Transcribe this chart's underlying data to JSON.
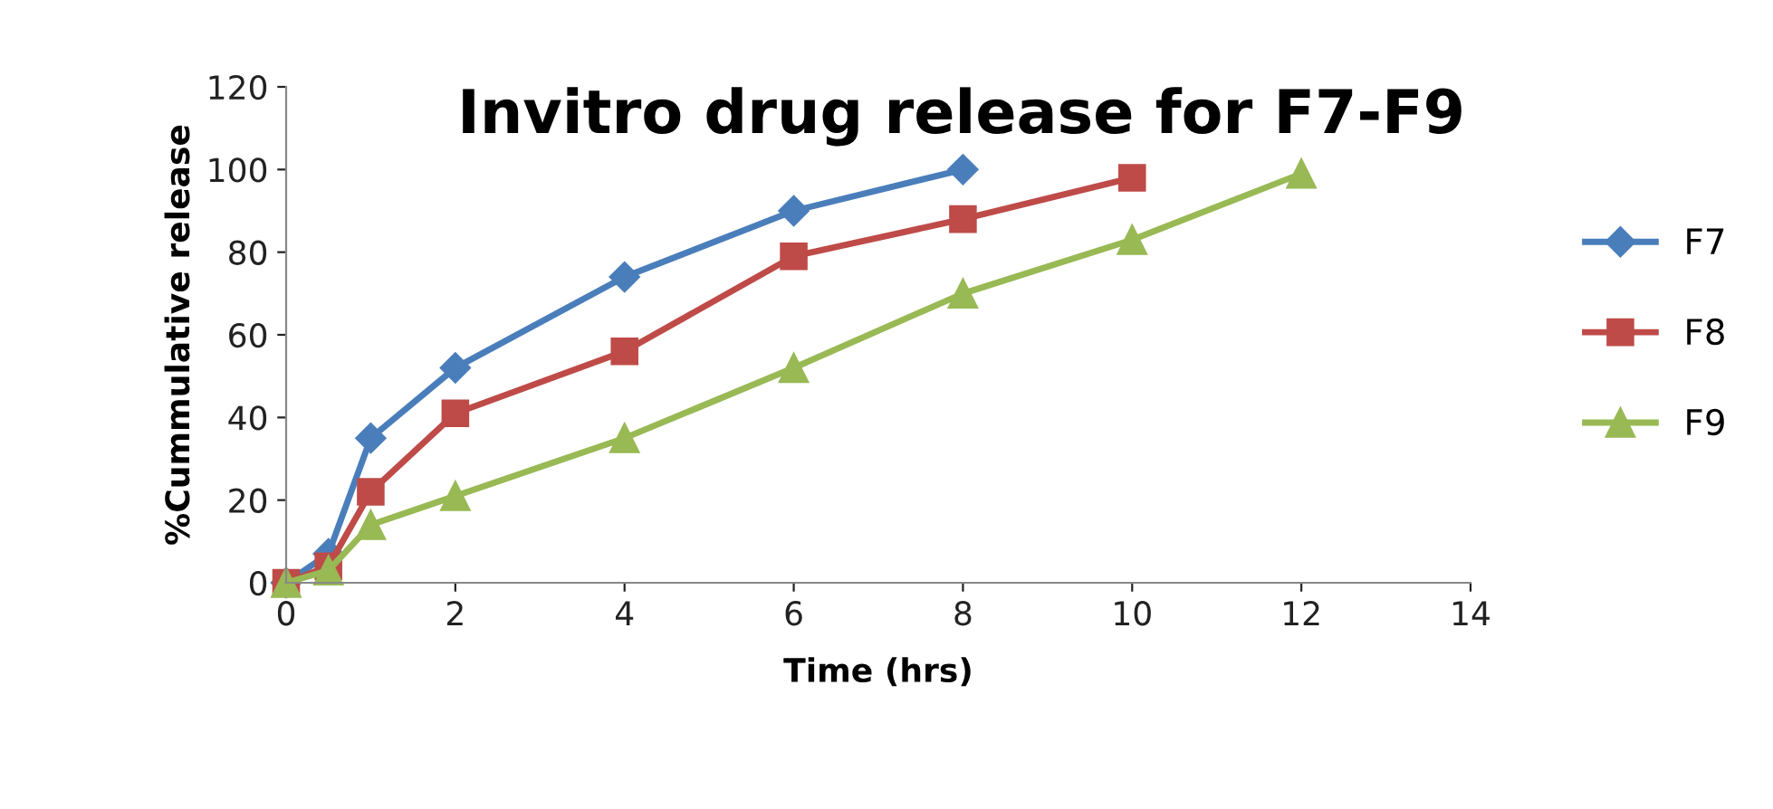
{
  "chart_data": {
    "type": "line",
    "title": "Invitro drug release for F7-F9",
    "xlabel": "Time (hrs)",
    "ylabel": "%Cummulative release",
    "xlim": [
      0,
      14
    ],
    "xticks": [
      0,
      2,
      4,
      6,
      8,
      10,
      12,
      14
    ],
    "ylim": [
      0,
      120
    ],
    "yticks": [
      0,
      20,
      40,
      60,
      80,
      100,
      120
    ],
    "grid": false,
    "legend": "right",
    "series": [
      {
        "name": "F7",
        "color": "#4a7ebb",
        "marker": "diamond",
        "x": [
          0,
          0.5,
          1,
          2,
          4,
          6,
          8
        ],
        "values": [
          0,
          7,
          35,
          52,
          74,
          90,
          100
        ]
      },
      {
        "name": "F8",
        "color": "#be4b48",
        "marker": "square",
        "x": [
          0,
          0.5,
          1,
          2,
          4,
          6,
          8,
          10
        ],
        "values": [
          0,
          4,
          22,
          41,
          56,
          79,
          88,
          98
        ]
      },
      {
        "name": "F9",
        "color": "#98b954",
        "marker": "triangle",
        "x": [
          0,
          0.5,
          1,
          2,
          4,
          6,
          8,
          10,
          12
        ],
        "values": [
          0,
          3,
          14,
          21,
          35,
          52,
          70,
          83,
          99
        ]
      }
    ]
  }
}
